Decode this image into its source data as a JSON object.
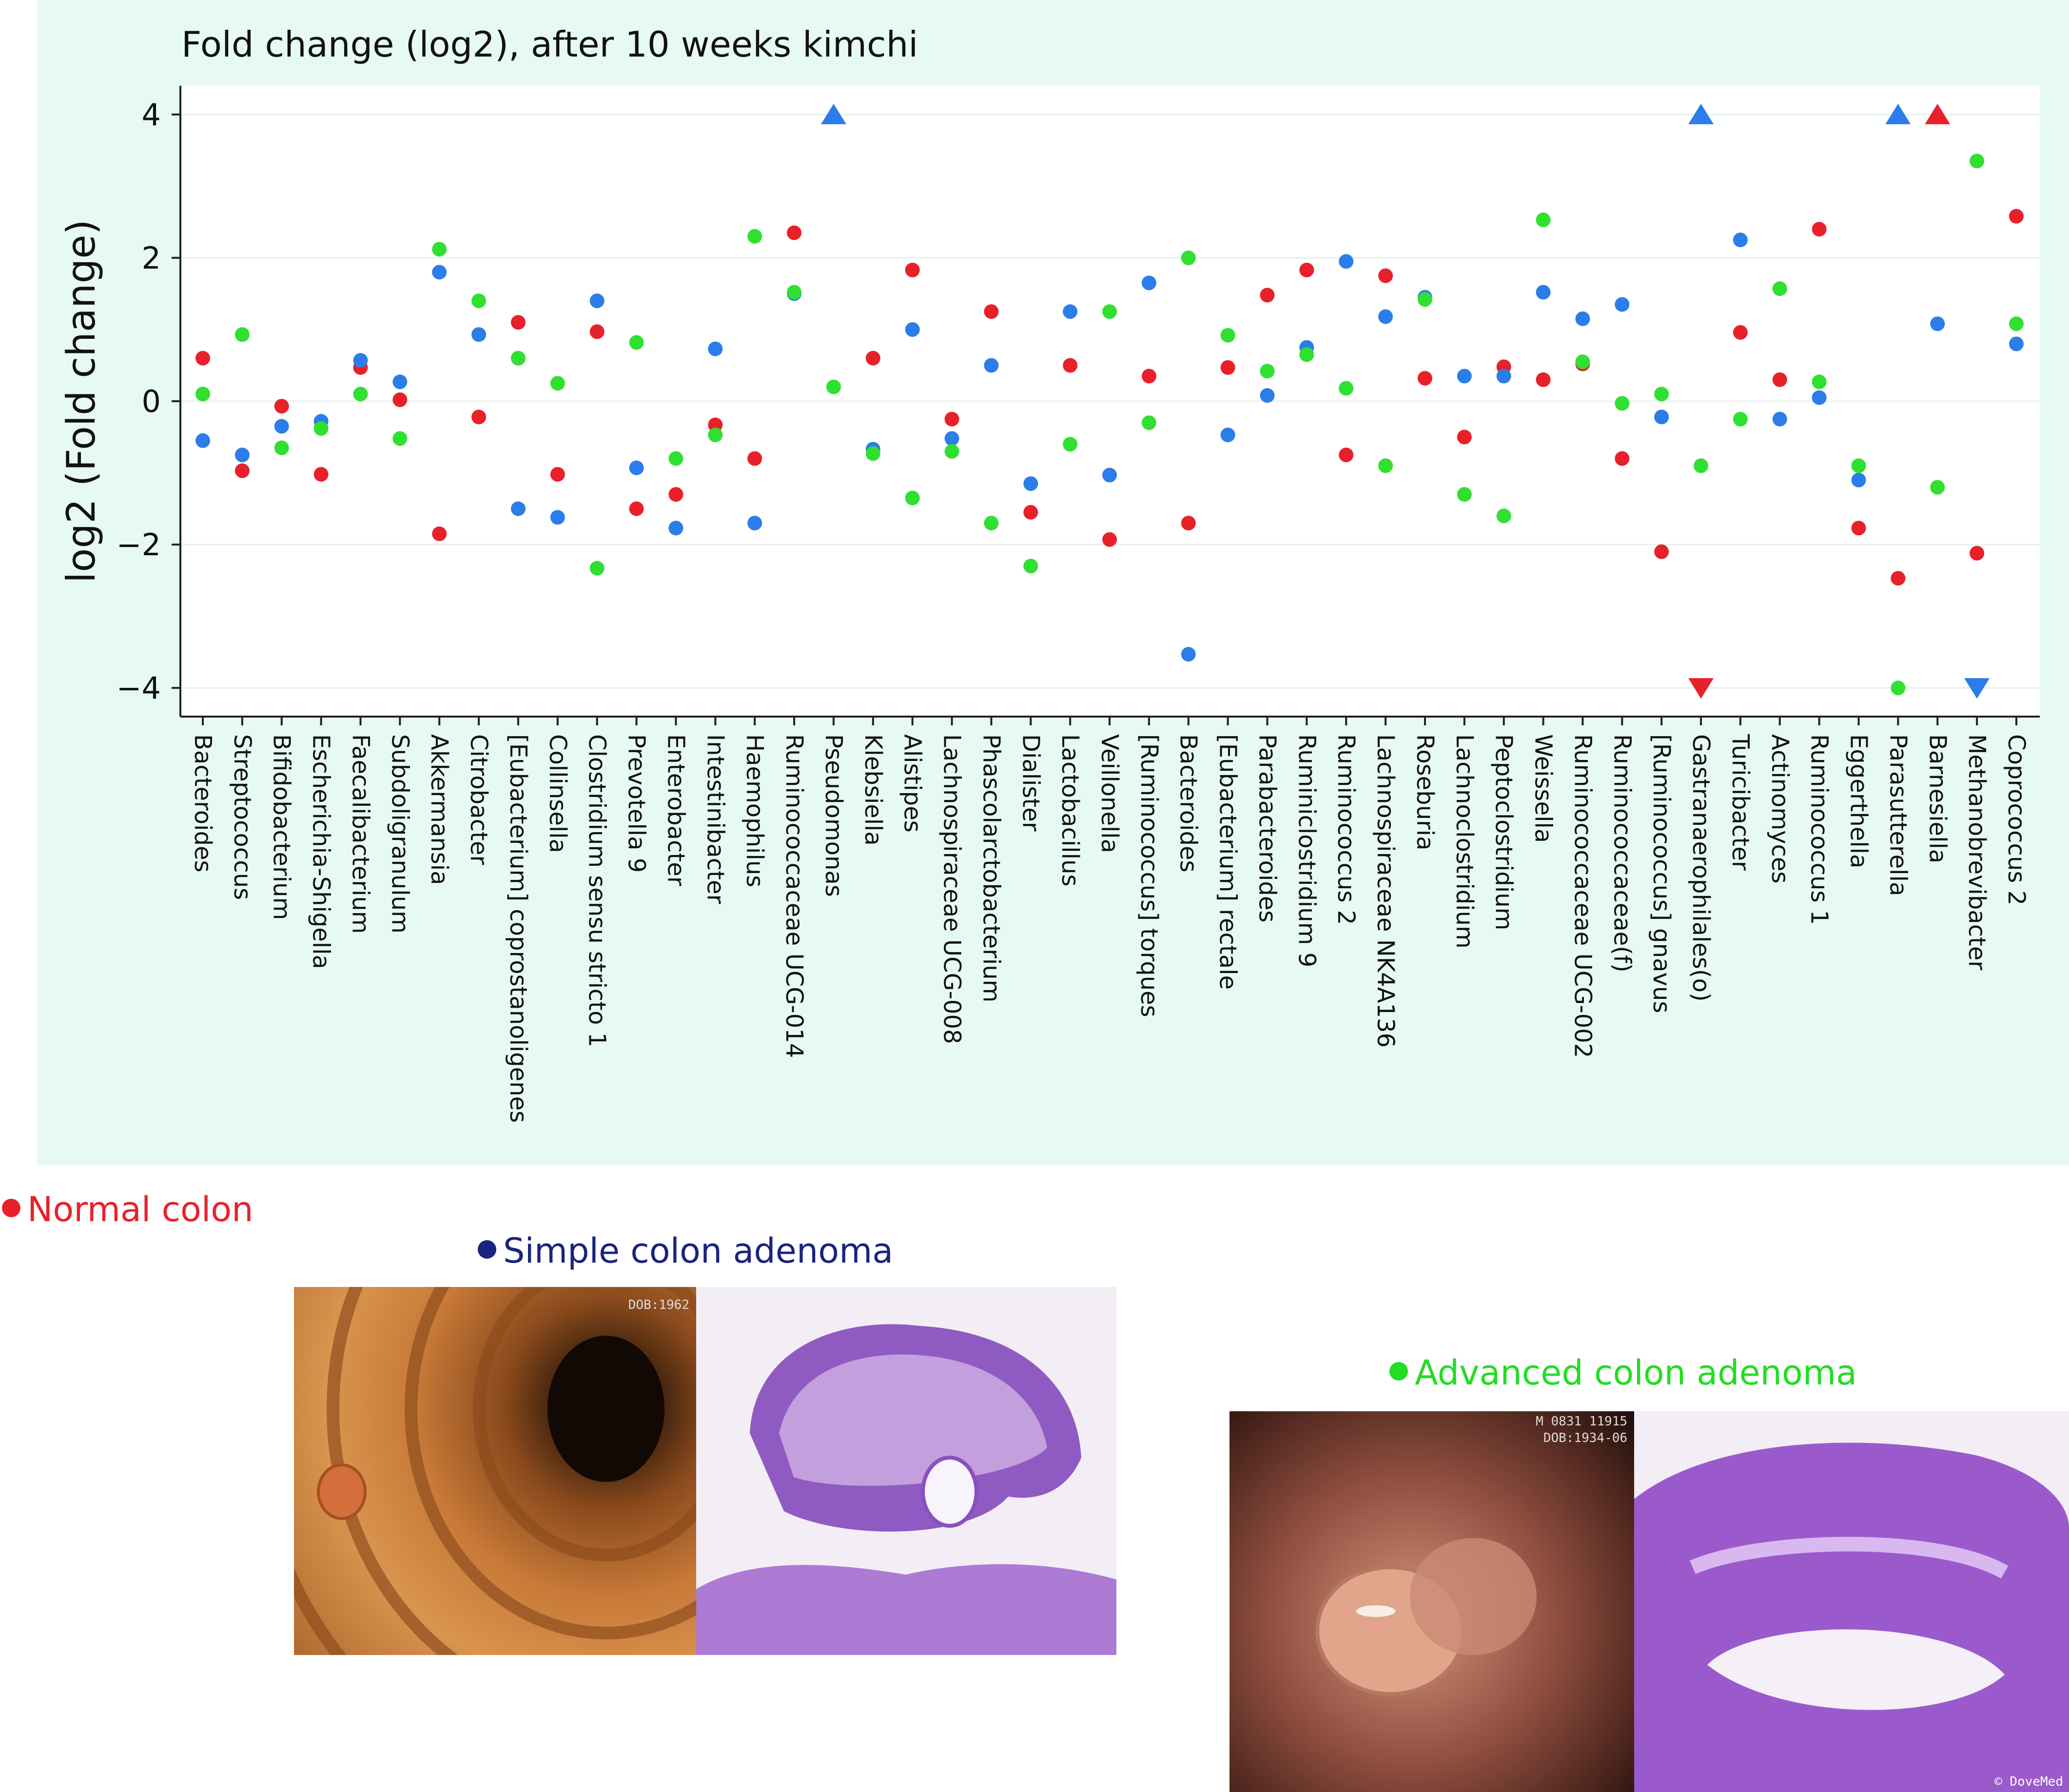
{
  "chart_data": {
    "type": "scatter",
    "title": "Fold change (log2), after 10 weeks kimchi",
    "ylabel": "log2 (Fold change)",
    "xlabel": "",
    "ylim": [
      -4.4,
      4.4
    ],
    "yticks": [
      -4,
      -2,
      0,
      2,
      4
    ],
    "ytick_labels": [
      "−4",
      "−2",
      "0",
      "2",
      "4"
    ],
    "categories": [
      "Bacteroides",
      "Streptococcus",
      "Bifidobacterium",
      "Escherichia-Shigella",
      "Faecalibacterium",
      "Subdoligranulum",
      "Akkermansia",
      "Citrobacter",
      "[Eubacterium] coprostanoligenes",
      "Collinsella",
      "Clostridium sensu stricto 1",
      "Prevotella 9",
      "Enterobacter",
      "Intestinibacter",
      "Haemophilus",
      "Ruminococcaceae UCG-014",
      "Pseudomonas",
      "Klebsiella",
      "Alistipes",
      "Lachnospiraceae UCG-008",
      "Phascolarctobacterium",
      "Dialister",
      "Lactobacillus",
      "Veillonella",
      "[Ruminococcus] torques",
      "Bacteroides",
      "[Eubacterium] rectale",
      "Parabacteroides",
      "Ruminiclostridium 9",
      "Ruminococcus 2",
      "Lachnospiraceae NK4A136",
      "Roseburia",
      "Lachnoclostridium",
      "Peptoclostridium",
      "Weissella",
      "Ruminococcaceae UCG-002",
      "Ruminococcaceae(f)",
      "[Ruminococcus] gnavus",
      "Gastranaerophilales(o)",
      "Turicibacter",
      "Actinomyces",
      "Ruminococcus 1",
      "Eggerthella",
      "Parasutterella",
      "Barnesiella",
      "Methanobrevibacter",
      "Coprococcus 2"
    ],
    "series": [
      {
        "name": "Normal colon",
        "color": "#e8202a",
        "values": [
          0.6,
          -0.97,
          -0.07,
          -1.02,
          0.47,
          0.02,
          -1.85,
          -0.22,
          1.1,
          -1.02,
          0.97,
          -1.5,
          -1.3,
          -0.33,
          -0.8,
          2.35,
          null,
          0.6,
          1.83,
          -0.25,
          1.25,
          -1.55,
          0.5,
          -1.93,
          0.35,
          -1.7,
          0.47,
          1.48,
          1.83,
          -0.75,
          1.75,
          0.32,
          -0.5,
          0.48,
          0.3,
          0.52,
          -0.8,
          -2.1,
          -4.0,
          0.96,
          0.3,
          2.4,
          -1.77,
          -2.47,
          4.0,
          -2.12,
          2.58
        ]
      },
      {
        "name": "Simple colon adenoma",
        "color": "#2b7de9",
        "values": [
          -0.55,
          -0.75,
          -0.35,
          -0.28,
          0.57,
          0.27,
          1.8,
          0.93,
          -1.5,
          -1.62,
          1.4,
          -0.93,
          -1.77,
          0.73,
          -1.7,
          1.5,
          4.0,
          -0.67,
          1.0,
          -0.52,
          0.5,
          -1.15,
          1.25,
          -1.03,
          1.65,
          -3.53,
          -0.47,
          0.08,
          0.75,
          1.95,
          1.18,
          1.45,
          0.35,
          0.35,
          1.52,
          1.15,
          1.35,
          -0.22,
          4.0,
          2.25,
          -0.25,
          0.05,
          -1.1,
          4.0,
          1.08,
          -4.0,
          0.8
        ]
      },
      {
        "name": "Advanced colon adenoma",
        "color": "#30e030",
        "values": [
          0.1,
          0.93,
          -0.65,
          -0.38,
          0.1,
          -0.52,
          2.12,
          1.4,
          0.6,
          0.25,
          -2.33,
          0.82,
          -0.8,
          -0.47,
          2.3,
          1.52,
          0.2,
          -0.73,
          -1.35,
          -0.7,
          -1.7,
          -2.3,
          -0.6,
          1.25,
          -0.3,
          2.0,
          0.92,
          0.42,
          0.65,
          0.18,
          -0.9,
          1.42,
          -1.3,
          -1.6,
          2.53,
          0.55,
          -0.03,
          0.1,
          -0.9,
          -0.25,
          1.57,
          0.27,
          -0.9,
          -4.0,
          -1.2,
          3.35,
          1.08
        ]
      }
    ],
    "clipped_markers": [
      {
        "category_index": 16,
        "series": "Simple colon adenoma",
        "direction": "up"
      },
      {
        "category_index": 38,
        "series": "Simple colon adenoma",
        "direction": "up"
      },
      {
        "category_index": 38,
        "series": "Normal colon",
        "direction": "down"
      },
      {
        "category_index": 43,
        "series": "Simple colon adenoma",
        "direction": "up"
      },
      {
        "category_index": 44,
        "series": "Normal colon",
        "direction": "up"
      },
      {
        "category_index": 45,
        "series": "Simple colon adenoma",
        "direction": "down"
      }
    ],
    "grid": true,
    "legend": "below-chart"
  },
  "legend": {
    "normal": {
      "label": "Normal colon",
      "color": "#e8202a"
    },
    "simple": {
      "label": "Simple colon adenoma",
      "color": "#1a237e"
    },
    "advanced": {
      "label": "Advanced colon adenoma",
      "color": "#22dd22"
    }
  },
  "photos": {
    "simple_overlay": "DOB:1962",
    "advanced_overlay_1": "M 0831 11915",
    "advanced_overlay_2": "DOB:1934-06",
    "watermark": "© DoveMed"
  }
}
